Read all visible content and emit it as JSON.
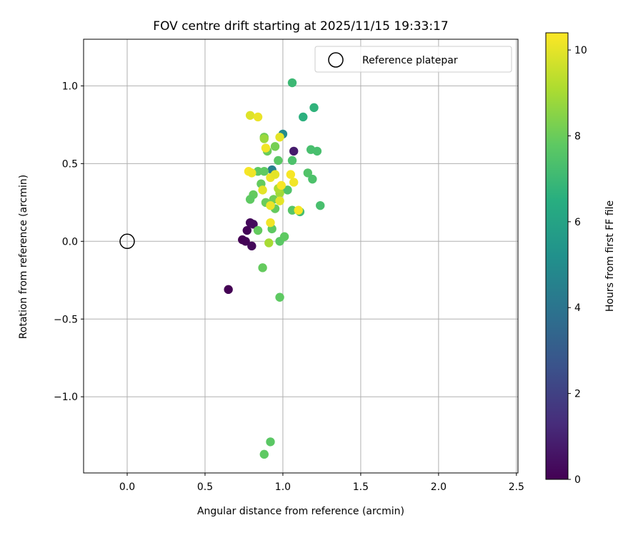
{
  "chart_data": {
    "type": "scatter",
    "title": "FOV centre drift starting at 2025/11/15 19:33:17",
    "xlabel": "Angular distance from reference (arcmin)",
    "ylabel": "Rotation from reference (arcmin)",
    "xlim": [
      -0.28,
      2.51
    ],
    "ylim": [
      -1.49,
      1.3
    ],
    "xticks": [
      0.0,
      0.5,
      1.0,
      1.5,
      2.0,
      2.5
    ],
    "xtick_labels": [
      "0.0",
      "0.5",
      "1.0",
      "1.5",
      "2.0",
      "2.5"
    ],
    "yticks": [
      -1.0,
      -0.5,
      0.0,
      0.5,
      1.0
    ],
    "ytick_labels": [
      "−1.0",
      "−0.5",
      "0.0",
      "0.5",
      "1.0"
    ],
    "grid": true,
    "legend": {
      "position": "top-right",
      "entries": [
        {
          "label": "Reference platepar",
          "marker": "open-circle"
        }
      ]
    },
    "reference_point": {
      "x": 0.0,
      "y": 0.0
    },
    "colorbar": {
      "label": "Hours from first FF file",
      "range": [
        0,
        10.4
      ],
      "ticks": [
        0,
        2,
        4,
        6,
        8,
        10
      ],
      "tick_labels": [
        "0",
        "2",
        "4",
        "6",
        "8",
        "10"
      ],
      "colormap": "viridis"
    },
    "points": [
      {
        "x": 0.65,
        "y": -0.31,
        "h": 0.0
      },
      {
        "x": 0.74,
        "y": 0.01,
        "h": 0.0
      },
      {
        "x": 0.76,
        "y": 0.0,
        "h": 0.1
      },
      {
        "x": 0.77,
        "y": 0.07,
        "h": 0.1
      },
      {
        "x": 0.79,
        "y": 0.12,
        "h": 0.2
      },
      {
        "x": 0.81,
        "y": 0.11,
        "h": 0.3
      },
      {
        "x": 0.8,
        "y": -0.03,
        "h": 0.2
      },
      {
        "x": 1.07,
        "y": 0.58,
        "h": 0.8
      },
      {
        "x": 0.93,
        "y": 0.46,
        "h": 4.5
      },
      {
        "x": 1.0,
        "y": 0.69,
        "h": 5.0
      },
      {
        "x": 1.06,
        "y": 1.02,
        "h": 7.0
      },
      {
        "x": 1.2,
        "y": 0.86,
        "h": 6.7
      },
      {
        "x": 1.13,
        "y": 0.8,
        "h": 6.6
      },
      {
        "x": 1.18,
        "y": 0.59,
        "h": 7.3
      },
      {
        "x": 1.22,
        "y": 0.58,
        "h": 7.3
      },
      {
        "x": 1.06,
        "y": 0.52,
        "h": 7.4
      },
      {
        "x": 1.16,
        "y": 0.44,
        "h": 7.5
      },
      {
        "x": 1.19,
        "y": 0.4,
        "h": 7.4
      },
      {
        "x": 1.24,
        "y": 0.23,
        "h": 7.3
      },
      {
        "x": 1.11,
        "y": 0.19,
        "h": 7.2
      },
      {
        "x": 1.06,
        "y": 0.2,
        "h": 7.6
      },
      {
        "x": 1.03,
        "y": 0.33,
        "h": 7.5
      },
      {
        "x": 0.97,
        "y": 0.52,
        "h": 7.7
      },
      {
        "x": 0.95,
        "y": 0.61,
        "h": 8.2
      },
      {
        "x": 0.88,
        "y": 0.67,
        "h": 8.1
      },
      {
        "x": 0.9,
        "y": 0.58,
        "h": 8.0
      },
      {
        "x": 0.88,
        "y": 0.45,
        "h": 7.8
      },
      {
        "x": 0.84,
        "y": 0.45,
        "h": 7.8
      },
      {
        "x": 0.86,
        "y": 0.37,
        "h": 7.9
      },
      {
        "x": 0.81,
        "y": 0.3,
        "h": 7.9
      },
      {
        "x": 0.79,
        "y": 0.27,
        "h": 7.8
      },
      {
        "x": 0.89,
        "y": 0.25,
        "h": 8.0
      },
      {
        "x": 0.94,
        "y": 0.27,
        "h": 8.1
      },
      {
        "x": 0.95,
        "y": 0.21,
        "h": 7.9
      },
      {
        "x": 0.84,
        "y": 0.07,
        "h": 7.9
      },
      {
        "x": 0.93,
        "y": 0.08,
        "h": 7.8
      },
      {
        "x": 0.98,
        "y": 0.0,
        "h": 7.7
      },
      {
        "x": 1.01,
        "y": 0.03,
        "h": 7.8
      },
      {
        "x": 0.87,
        "y": -0.17,
        "h": 7.9
      },
      {
        "x": 0.98,
        "y": -0.36,
        "h": 7.8
      },
      {
        "x": 0.92,
        "y": -1.29,
        "h": 7.7
      },
      {
        "x": 0.88,
        "y": -1.37,
        "h": 7.8
      },
      {
        "x": 0.98,
        "y": 0.31,
        "h": 8.9
      },
      {
        "x": 0.97,
        "y": 0.34,
        "h": 9.1
      },
      {
        "x": 0.91,
        "y": -0.01,
        "h": 9.0
      },
      {
        "x": 0.88,
        "y": 0.66,
        "h": 8.8
      },
      {
        "x": 0.79,
        "y": 0.81,
        "h": 9.9
      },
      {
        "x": 0.84,
        "y": 0.8,
        "h": 10.1
      },
      {
        "x": 0.89,
        "y": 0.6,
        "h": 10.2
      },
      {
        "x": 0.98,
        "y": 0.67,
        "h": 10.0
      },
      {
        "x": 0.78,
        "y": 0.45,
        "h": 10.3
      },
      {
        "x": 0.8,
        "y": 0.44,
        "h": 10.2
      },
      {
        "x": 0.92,
        "y": 0.41,
        "h": 10.1
      },
      {
        "x": 0.95,
        "y": 0.43,
        "h": 10.0
      },
      {
        "x": 1.05,
        "y": 0.43,
        "h": 10.3
      },
      {
        "x": 1.07,
        "y": 0.38,
        "h": 10.2
      },
      {
        "x": 0.99,
        "y": 0.36,
        "h": 10.3
      },
      {
        "x": 0.87,
        "y": 0.33,
        "h": 10.0
      },
      {
        "x": 0.98,
        "y": 0.26,
        "h": 10.0
      },
      {
        "x": 0.92,
        "y": 0.23,
        "h": 10.1
      },
      {
        "x": 1.1,
        "y": 0.2,
        "h": 10.3
      },
      {
        "x": 0.92,
        "y": 0.12,
        "h": 10.2
      }
    ]
  }
}
